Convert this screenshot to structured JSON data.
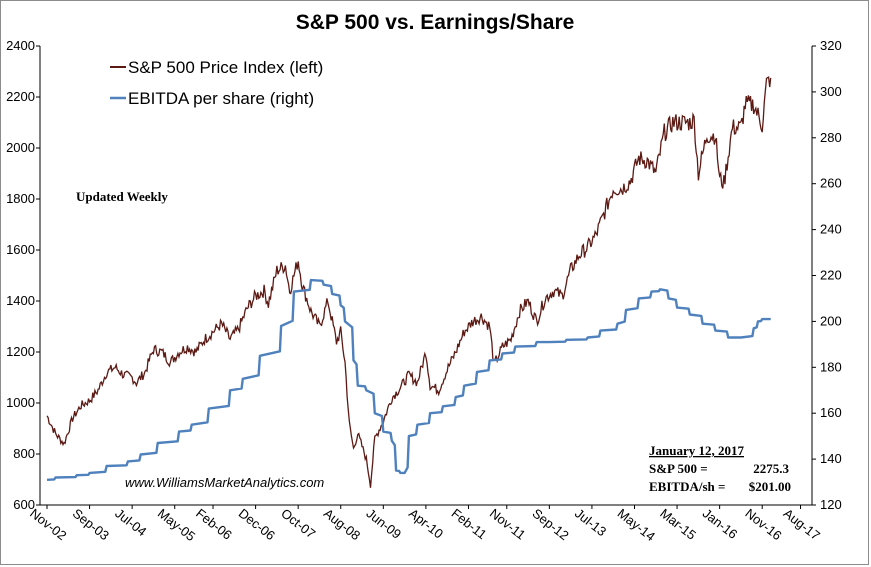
{
  "chart_data": {
    "type": "line",
    "title": "S&P 500 vs. Earnings/Share",
    "x_tick_labels": [
      "Nov-02",
      "Sep-03",
      "Jul-04",
      "May-05",
      "Feb-06",
      "Dec-06",
      "Oct-07",
      "Aug-08",
      "Jun-09",
      "Apr-10",
      "Feb-11",
      "Nov-11",
      "Sep-12",
      "Jul-13",
      "May-14",
      "Mar-15",
      "Jan-16",
      "Nov-16",
      "Aug-17"
    ],
    "y_left": {
      "min": 600,
      "max": 2400,
      "step": 200,
      "ticks": [
        "600",
        "800",
        "1000",
        "1200",
        "1400",
        "1600",
        "1800",
        "2000",
        "2200",
        "2400"
      ]
    },
    "y_right": {
      "min": 120,
      "max": 320,
      "step": 20,
      "ticks": [
        "120",
        "140",
        "160",
        "180",
        "200",
        "220",
        "240",
        "260",
        "280",
        "300",
        "320"
      ]
    },
    "legend": {
      "placement": "top-left"
    },
    "series": [
      {
        "name": "S&P 500 Price Index (left)",
        "axis": "left",
        "color": "#5c1a14",
        "points": [
          [
            "2002-11",
            950
          ],
          [
            "2003-01",
            880
          ],
          [
            "2003-03",
            840
          ],
          [
            "2003-05",
            940
          ],
          [
            "2003-07",
            990
          ],
          [
            "2003-09",
            1010
          ],
          [
            "2003-11",
            1050
          ],
          [
            "2004-01",
            1120
          ],
          [
            "2004-03",
            1140
          ],
          [
            "2004-05",
            1110
          ],
          [
            "2004-07",
            1100
          ],
          [
            "2004-08",
            1080
          ],
          [
            "2004-10",
            1120
          ],
          [
            "2004-12",
            1210
          ],
          [
            "2005-02",
            1200
          ],
          [
            "2005-04",
            1160
          ],
          [
            "2005-06",
            1200
          ],
          [
            "2005-08",
            1220
          ],
          [
            "2005-10",
            1200
          ],
          [
            "2005-12",
            1250
          ],
          [
            "2006-02",
            1280
          ],
          [
            "2006-04",
            1310
          ],
          [
            "2006-06",
            1250
          ],
          [
            "2006-08",
            1290
          ],
          [
            "2006-10",
            1370
          ],
          [
            "2006-12",
            1420
          ],
          [
            "2007-02",
            1440
          ],
          [
            "2007-03",
            1390
          ],
          [
            "2007-05",
            1520
          ],
          [
            "2007-07",
            1540
          ],
          [
            "2007-08",
            1440
          ],
          [
            "2007-10",
            1560
          ],
          [
            "2007-11",
            1460
          ],
          [
            "2008-01",
            1360
          ],
          [
            "2008-03",
            1300
          ],
          [
            "2008-05",
            1400
          ],
          [
            "2008-07",
            1240
          ],
          [
            "2008-08",
            1280
          ],
          [
            "2008-09",
            1160
          ],
          [
            "2008-10",
            920
          ],
          [
            "2008-11",
            820
          ],
          [
            "2008-12",
            880
          ],
          [
            "2009-02",
            780
          ],
          [
            "2009-03",
            680
          ],
          [
            "2009-04",
            860
          ],
          [
            "2009-06",
            930
          ],
          [
            "2009-08",
            1020
          ],
          [
            "2009-10",
            1060
          ],
          [
            "2009-12",
            1110
          ],
          [
            "2010-02",
            1080
          ],
          [
            "2010-04",
            1200
          ],
          [
            "2010-05",
            1070
          ],
          [
            "2010-07",
            1050
          ],
          [
            "2010-09",
            1130
          ],
          [
            "2010-11",
            1200
          ],
          [
            "2011-01",
            1280
          ],
          [
            "2011-03",
            1320
          ],
          [
            "2011-05",
            1340
          ],
          [
            "2011-07",
            1300
          ],
          [
            "2011-08",
            1150
          ],
          [
            "2011-10",
            1220
          ],
          [
            "2011-12",
            1250
          ],
          [
            "2012-02",
            1360
          ],
          [
            "2012-04",
            1400
          ],
          [
            "2012-06",
            1320
          ],
          [
            "2012-08",
            1410
          ],
          [
            "2012-10",
            1440
          ],
          [
            "2012-12",
            1420
          ],
          [
            "2013-02",
            1520
          ],
          [
            "2013-04",
            1580
          ],
          [
            "2013-06",
            1610
          ],
          [
            "2013-08",
            1660
          ],
          [
            "2013-10",
            1750
          ],
          [
            "2013-12",
            1840
          ],
          [
            "2014-02",
            1840
          ],
          [
            "2014-04",
            1870
          ],
          [
            "2014-06",
            1960
          ],
          [
            "2014-08",
            1950
          ],
          [
            "2014-10",
            1900
          ],
          [
            "2014-12",
            2060
          ],
          [
            "2015-02",
            2100
          ],
          [
            "2015-04",
            2100
          ],
          [
            "2015-06",
            2100
          ],
          [
            "2015-07",
            2110
          ],
          [
            "2015-08",
            1900
          ],
          [
            "2015-10",
            2050
          ],
          [
            "2015-12",
            2050
          ],
          [
            "2016-01",
            1880
          ],
          [
            "2016-02",
            1860
          ],
          [
            "2016-04",
            2080
          ],
          [
            "2016-06",
            2080
          ],
          [
            "2016-07",
            2170
          ],
          [
            "2016-09",
            2170
          ],
          [
            "2016-10",
            2130
          ],
          [
            "2016-11",
            2090
          ],
          [
            "2016-12",
            2250
          ],
          [
            "2017-01",
            2275
          ]
        ]
      },
      {
        "name": "EBITDA per share (right)",
        "axis": "right",
        "color": "#4f81bd",
        "points": [
          [
            "2002-11",
            131
          ],
          [
            "2003-01",
            132
          ],
          [
            "2003-06",
            133
          ],
          [
            "2003-09",
            134
          ],
          [
            "2004-01",
            137
          ],
          [
            "2004-06",
            139
          ],
          [
            "2004-09",
            142
          ],
          [
            "2005-01",
            147
          ],
          [
            "2005-06",
            152
          ],
          [
            "2005-09",
            155
          ],
          [
            "2006-01",
            162
          ],
          [
            "2006-06",
            170
          ],
          [
            "2006-09",
            175
          ],
          [
            "2007-01",
            185
          ],
          [
            "2007-06",
            198
          ],
          [
            "2007-09",
            213
          ],
          [
            "2008-01",
            218
          ],
          [
            "2008-04",
            216
          ],
          [
            "2008-06",
            212
          ],
          [
            "2008-08",
            207
          ],
          [
            "2008-09",
            200
          ],
          [
            "2008-11",
            183
          ],
          [
            "2008-12",
            172
          ],
          [
            "2009-02",
            170
          ],
          [
            "2009-04",
            160
          ],
          [
            "2009-06",
            152
          ],
          [
            "2009-08",
            148
          ],
          [
            "2009-09",
            135
          ],
          [
            "2009-10",
            134
          ],
          [
            "2009-11",
            134
          ],
          [
            "2009-12",
            150
          ],
          [
            "2010-02",
            155
          ],
          [
            "2010-05",
            160
          ],
          [
            "2010-08",
            163
          ],
          [
            "2010-11",
            167
          ],
          [
            "2011-01",
            172
          ],
          [
            "2011-04",
            178
          ],
          [
            "2011-07",
            183
          ],
          [
            "2011-10",
            186
          ],
          [
            "2012-01",
            189
          ],
          [
            "2012-06",
            191
          ],
          [
            "2012-09",
            191
          ],
          [
            "2013-01",
            192
          ],
          [
            "2013-06",
            193
          ],
          [
            "2013-09",
            196
          ],
          [
            "2014-01",
            199
          ],
          [
            "2014-03",
            205
          ],
          [
            "2014-06",
            210
          ],
          [
            "2014-09",
            213
          ],
          [
            "2014-11",
            214
          ],
          [
            "2015-01",
            210
          ],
          [
            "2015-03",
            206
          ],
          [
            "2015-06",
            203
          ],
          [
            "2015-09",
            199
          ],
          [
            "2015-12",
            196
          ],
          [
            "2016-03",
            193
          ],
          [
            "2016-06",
            193
          ],
          [
            "2016-09",
            197
          ],
          [
            "2016-10",
            200
          ],
          [
            "2016-11",
            201
          ],
          [
            "2017-01",
            201
          ]
        ]
      }
    ],
    "annotations": {
      "updated": "Updated Weekly",
      "website": "www.WilliamsMarketAnalytics.com",
      "box": {
        "date": "January 12, 2017",
        "sp_label": "S&P 500 =",
        "sp_value": "2275.3",
        "ebitda_label": "EBITDA/sh =",
        "ebitda_value": "$201.00"
      }
    }
  }
}
